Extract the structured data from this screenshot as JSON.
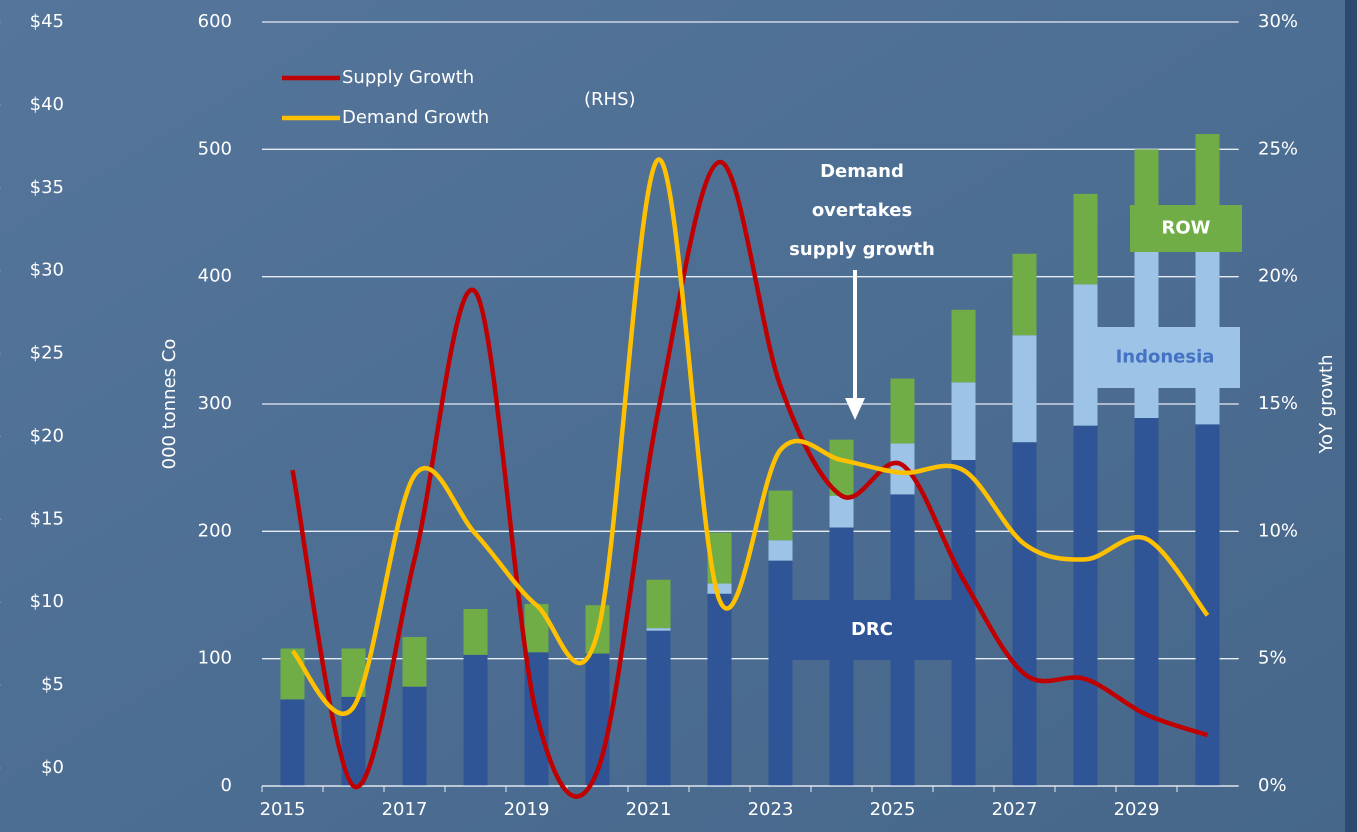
{
  "chart_data": {
    "type": "bar",
    "y_label": "000 tonnes Co",
    "y2_label": "YoY growth",
    "categories": [
      "2015",
      null,
      "2017",
      null,
      "2019",
      null,
      "2021",
      null,
      "2023",
      null,
      "2025",
      null,
      "2027",
      null,
      "2029",
      null
    ],
    "series": [
      {
        "name": "DRC",
        "type": "bar",
        "color": "#2f5597",
        "values": [
          68,
          70,
          78,
          103,
          105,
          104,
          122,
          151,
          177,
          203,
          229,
          256,
          270,
          283,
          289,
          284
        ]
      },
      {
        "name": "Indonesia",
        "type": "bar",
        "color": "#9dc3e6",
        "values": [
          0,
          0,
          0,
          0,
          0,
          0,
          2,
          8,
          16,
          25,
          40,
          61,
          84,
          111,
          131,
          137
        ]
      },
      {
        "name": "ROW",
        "type": "bar",
        "color": "#70ad47",
        "values": [
          40,
          38,
          39,
          36,
          38,
          38,
          38,
          40,
          39,
          44,
          51,
          57,
          64,
          71,
          80,
          91
        ]
      },
      {
        "name": "Supply Growth",
        "type": "line",
        "axis": "y2",
        "color": "#c00000",
        "values": [
          12.4,
          0,
          8.9,
          19.4,
          2.8,
          0.6,
          14.8,
          24.5,
          15.7,
          11.4,
          12.6,
          8.1,
          4.4,
          4.2,
          2.8,
          2.0
        ]
      },
      {
        "name": "Demand Growth",
        "type": "line",
        "axis": "y2",
        "color": "#ffc000",
        "values": [
          5.3,
          3.1,
          12.2,
          9.9,
          7.1,
          6.0,
          24.6,
          7.3,
          13.2,
          12.8,
          12.3,
          12.4,
          9.5,
          8.9,
          9.7,
          6.7
        ]
      }
    ],
    "legend_note": "(RHS)",
    "annotation": [
      "Demand",
      "overtakes",
      "supply growth"
    ],
    "ylim": [
      0,
      600
    ],
    "yticks": [
      0,
      100,
      200,
      300,
      400,
      500,
      600
    ],
    "y2lim": [
      0,
      30
    ],
    "y2ticks": [
      {
        "value": 0,
        "label": "0%"
      },
      {
        "value": 5,
        "label": "5%"
      },
      {
        "value": 10,
        "label": "10%"
      },
      {
        "value": 15,
        "label": "15%"
      },
      {
        "value": 20,
        "label": "20%"
      },
      {
        "value": 25,
        "label": "25%"
      },
      {
        "value": 30,
        "label": "30%"
      }
    ],
    "y3lim": [
      0,
      45
    ],
    "y3ticks": [
      {
        "value": 0,
        "label": "$0"
      },
      {
        "value": 5,
        "label": "$5"
      },
      {
        "value": 10,
        "label": "$10"
      },
      {
        "value": 15,
        "label": "$15"
      },
      {
        "value": 20,
        "label": "$20"
      },
      {
        "value": 25,
        "label": "$25"
      },
      {
        "value": 30,
        "label": "$30"
      },
      {
        "value": 35,
        "label": "$35"
      },
      {
        "value": 40,
        "label": "$40"
      },
      {
        "value": 45,
        "label": "$45"
      }
    ],
    "grid": true,
    "legend": "top-left"
  }
}
